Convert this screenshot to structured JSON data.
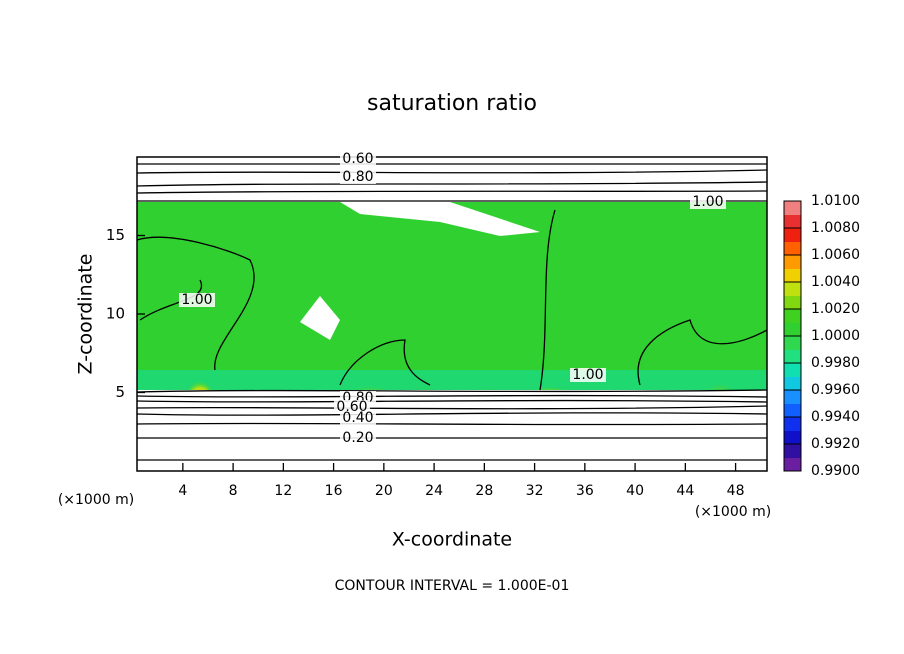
{
  "chart_data": {
    "type": "contour",
    "title": "saturation ratio",
    "x_label": "X-coordinate",
    "y_label": "Z-coordinate",
    "unit_labels": [
      "(×1000 m)",
      "(×1000 m)"
    ],
    "footnote": "CONTOUR INTERVAL = 1.000E-01",
    "xlim": [
      0.35,
      50.5
    ],
    "ylim": [
      0,
      20
    ],
    "xticks": [
      4,
      8,
      12,
      16,
      20,
      24,
      28,
      32,
      36,
      40,
      44,
      48
    ],
    "yticks": [
      5,
      10,
      15
    ],
    "contour_labels": [
      "0.60",
      "0.80",
      "1.00",
      "1.00",
      "1.00",
      "0.80",
      "0.60",
      "0.40",
      "0.20"
    ],
    "colorbar": {
      "lim": [
        0.99,
        1.01
      ],
      "ticks": [
        {
          "value": 0.99,
          "label": "0.9900"
        },
        {
          "value": 0.992,
          "label": "0.9920"
        },
        {
          "value": 0.994,
          "label": "0.9940"
        },
        {
          "value": 0.996,
          "label": "0.9960"
        },
        {
          "value": 0.998,
          "label": "0.9980"
        },
        {
          "value": 1,
          "label": "1.0000"
        },
        {
          "value": 1.002,
          "label": "1.0020"
        },
        {
          "value": 1.004,
          "label": "1.0040"
        },
        {
          "value": 1.006,
          "label": "1.0060"
        },
        {
          "value": 1.008,
          "label": "1.0080"
        },
        {
          "value": 1.01,
          "label": "1.0100"
        }
      ],
      "colors": [
        "#6a1fa0",
        "#3010a0",
        "#1010c8",
        "#1030f0",
        "#1060ff",
        "#1890ff",
        "#10c8e0",
        "#10e0b0",
        "#20e080",
        "#30d850",
        "#30d030",
        "#40d020",
        "#80d810",
        "#c0e010",
        "#f0d000",
        "#ff9a00",
        "#ff6000",
        "#f02010",
        "#e83030",
        "#f08080"
      ]
    }
  }
}
